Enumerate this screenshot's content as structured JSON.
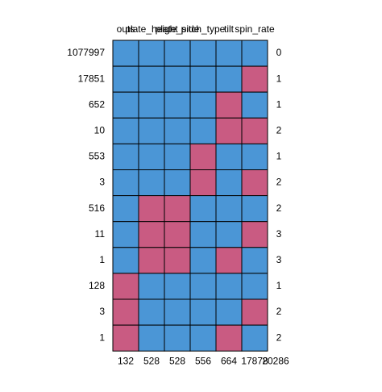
{
  "chart_data": {
    "type": "missing_pattern",
    "columns": [
      "outs",
      "plate_height",
      "plate_side",
      "pitch_type",
      "tilt",
      "spin_rate"
    ],
    "row_counts": [
      1077997,
      17851,
      652,
      10,
      553,
      3,
      516,
      11,
      1,
      128,
      3,
      1
    ],
    "patterns": [
      [
        1,
        1,
        1,
        1,
        1,
        1
      ],
      [
        1,
        1,
        1,
        1,
        1,
        0
      ],
      [
        1,
        1,
        1,
        1,
        0,
        1
      ],
      [
        1,
        1,
        1,
        1,
        0,
        0
      ],
      [
        1,
        1,
        1,
        0,
        1,
        1
      ],
      [
        1,
        1,
        1,
        0,
        1,
        0
      ],
      [
        1,
        0,
        0,
        1,
        1,
        1
      ],
      [
        1,
        0,
        0,
        1,
        1,
        0
      ],
      [
        1,
        0,
        0,
        1,
        0,
        1
      ],
      [
        0,
        1,
        1,
        1,
        1,
        1
      ],
      [
        0,
        1,
        1,
        1,
        1,
        0
      ],
      [
        0,
        1,
        1,
        1,
        0,
        1
      ]
    ],
    "row_missing": [
      0,
      1,
      1,
      2,
      1,
      2,
      2,
      3,
      3,
      1,
      2,
      2
    ],
    "column_missing": [
      132,
      528,
      528,
      556,
      664,
      17878
    ],
    "total_missing": 20286,
    "colors": {
      "observed": "#4b96d6",
      "missing": "#c95b82"
    }
  }
}
